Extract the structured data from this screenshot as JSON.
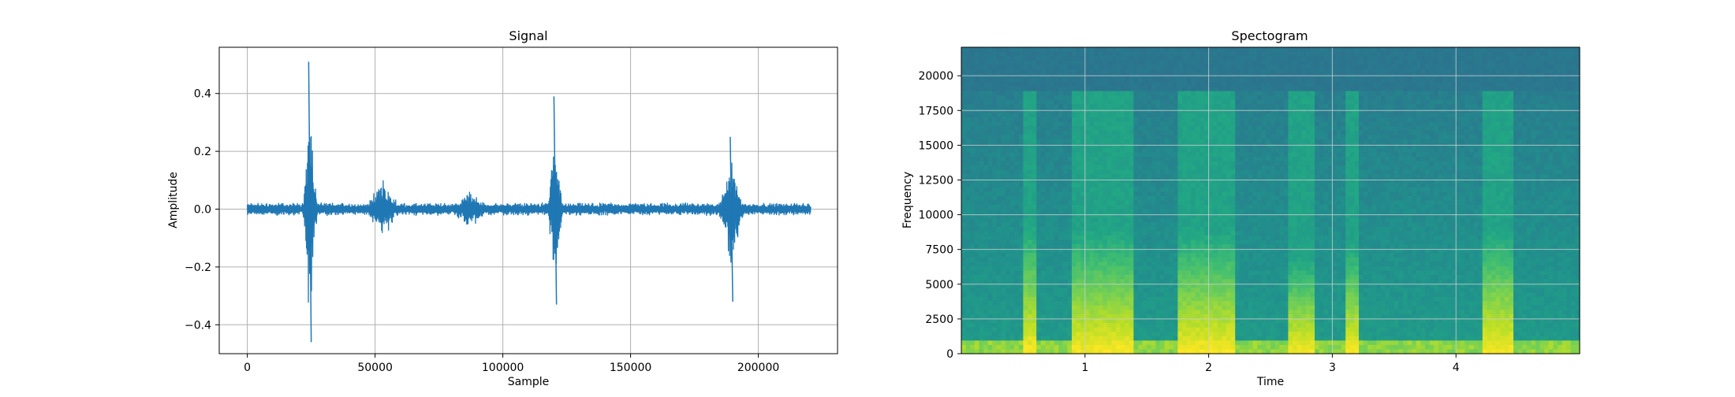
{
  "chart_data": [
    {
      "type": "line",
      "title": "Signal",
      "xlabel": "Sample",
      "ylabel": "Amplitude",
      "xlim": [
        -11000,
        231000
      ],
      "ylim": [
        -0.5,
        0.56
      ],
      "grid": true,
      "x_ticks": [
        0,
        50000,
        100000,
        150000,
        200000
      ],
      "x_tick_labels": [
        "0",
        "50000",
        "100000",
        "150000",
        "200000"
      ],
      "y_ticks": [
        -0.4,
        -0.2,
        0.0,
        0.2,
        0.4
      ],
      "y_tick_labels": [
        "−0.4",
        "−0.2",
        "0.0",
        "0.2",
        "0.4"
      ],
      "series": [
        {
          "color": "#1f77b4",
          "x_range": [
            0,
            220500
          ],
          "noise_amplitude": 0.02,
          "bursts": [
            {
              "start": 0,
              "end": 3000,
              "amplitude": 0.03
            },
            {
              "start": 21000,
              "end": 28000,
              "amplitude": 0.45,
              "peak_max": 0.51,
              "peak_min": -0.46
            },
            {
              "start": 44000,
              "end": 62000,
              "amplitude": 0.12
            },
            {
              "start": 77000,
              "end": 97000,
              "amplitude": 0.08
            },
            {
              "start": 117000,
              "end": 124000,
              "amplitude": 0.33,
              "peak_max": 0.39,
              "peak_min": -0.33
            },
            {
              "start": 183000,
              "end": 196000,
              "amplitude": 0.22,
              "peak_max": 0.25,
              "peak_min": -0.32
            }
          ]
        }
      ]
    },
    {
      "type": "heatmap",
      "title": "Spectogram",
      "xlabel": "Time",
      "ylabel": "Frequency",
      "xlim": [
        0,
        5.0
      ],
      "ylim": [
        0,
        22050
      ],
      "grid": true,
      "colormap": "viridis",
      "x_ticks": [
        1,
        2,
        3,
        4
      ],
      "x_tick_labels": [
        "1",
        "2",
        "3",
        "4"
      ],
      "y_ticks": [
        0,
        2500,
        5000,
        7500,
        10000,
        12500,
        15000,
        17500,
        20000
      ],
      "y_tick_labels": [
        "0",
        "2500",
        "5000",
        "7500",
        "10000",
        "12500",
        "15000",
        "17500",
        "20000"
      ],
      "high_energy_time_bands": [
        {
          "start": 0.5,
          "end": 0.6,
          "max_freq": 9500
        },
        {
          "start": 0.9,
          "end": 1.4,
          "max_freq": 9000
        },
        {
          "start": 1.75,
          "end": 2.2,
          "max_freq": 9000
        },
        {
          "start": 2.65,
          "end": 2.85,
          "max_freq": 7000
        },
        {
          "start": 3.1,
          "end": 3.2,
          "max_freq": 8000
        },
        {
          "start": 4.2,
          "end": 4.45,
          "max_freq": 9000
        }
      ]
    }
  ]
}
